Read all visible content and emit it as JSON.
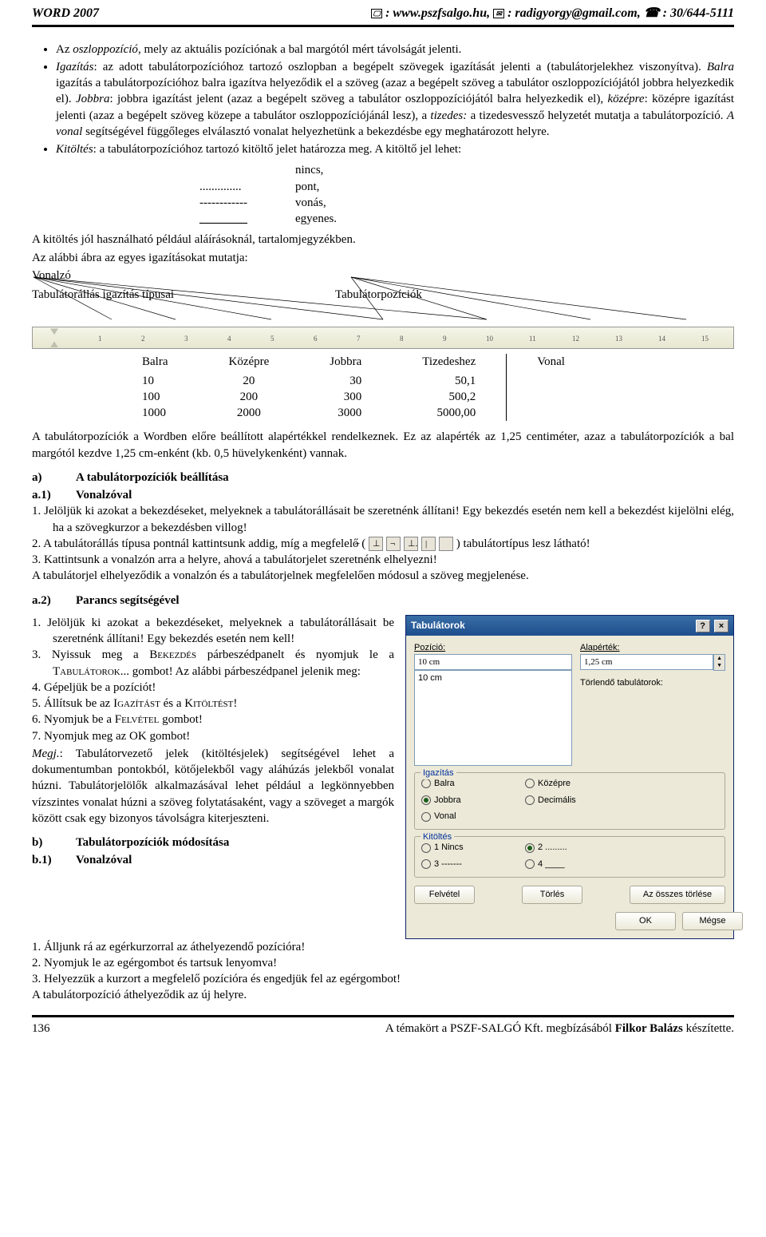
{
  "header": {
    "left": "WORD 2007",
    "right_web": ": www.pszfsalgo.hu, ",
    "right_mail": ": radigyorgy@gmail.com, ",
    "right_phone": ": 30/644-5111"
  },
  "bullets": {
    "b1_pre": "Az ",
    "b1_it": "oszloppozíció",
    "b1_post": ", mely az aktuális pozíciónak a bal margótól mért távolságát jelenti.",
    "b2_it": "Igazítás",
    "b2_txt": ": az adott tabulátorpozícióhoz tartozó oszlopban a begépelt szövegek igazítását jelenti a (tabulátorjelekhez viszonyítva). ",
    "b2_balra_it": "Balra",
    "b2_balra": " igazítás a tabulátorpozícióhoz balra igazítva helyeződik el a szöveg (azaz a begépelt szöveg a tabulátor oszloppozíciójától jobbra helyezkedik el). ",
    "b2_jobbra_it": "Jobbra",
    "b2_jobbra": ": jobbra igazítást jelent (azaz a begépelt szöveg a tabulátor oszloppozíciójától balra helyezkedik el), ",
    "b2_kozepre_it": "középre",
    "b2_kozepre": ": középre igazítást jelenti (azaz a begépelt szöveg közepe a tabulátor oszloppozíciójánál lesz), a ",
    "b2_tizedes_it": "tizedes:",
    "b2_tizedes": " a tizedesvessző helyzetét mutatja a tabulátorpozíció. ",
    "b2_vonal_it": "A vonal",
    "b2_vonal": " segítségével függőleges elválasztó vonalat helyezhetünk a bekezdésbe egy meghatározott helyre.",
    "b3_it": "Kitöltés",
    "b3_txt": ": a tabulátorpozícióhoz tartozó kitöltő jelet határozza meg. A kitöltő jel lehet:"
  },
  "fill": {
    "r1a": "",
    "r1b": "nincs,",
    "r2a": "..............",
    "r2b": "pont,",
    "r3a": "------------",
    "r3b": "vonás,",
    "r4a": "________",
    "r4b": "egyenes."
  },
  "para": {
    "p1": "A kitöltés jól használható például aláírásoknál, tartalomjegyzékben.",
    "p2": "Az alábbi ábra az egyes igazításokat mutatja:",
    "p3": "Vonalzó",
    "labL": "Tabulátorállás igazítás típusai",
    "labR": "Tabulátorpozíciók"
  },
  "tabtable": {
    "h": [
      "Balra",
      "Középre",
      "Jobbra",
      "Tizedeshez",
      "Vonal"
    ],
    "r1": [
      "10",
      "20",
      "30",
      "50,1",
      ""
    ],
    "r2": [
      "100",
      "200",
      "300",
      "500,2",
      ""
    ],
    "r3": [
      "1000",
      "2000",
      "3000",
      "5000,00",
      ""
    ]
  },
  "p_after_table": "A tabulátorpozíciók a Wordben előre beállított alapértékkel rendelkeznek. Ez az alapérték az 1,25 centiméter, azaz a tabulátorpozíciók a bal margótól kezdve 1,25 cm-enként (kb. 0,5 hüvelykenként) vannak.",
  "sec_a": {
    "a_lbl": "a)",
    "a_txt": "A tabulátorpozíciók beállítása",
    "a1_lbl": "a.1)",
    "a1_txt": "Vonalzóval",
    "s1": "1.  Jelöljük ki azokat a bekezdéseket, melyeknek a tabulátorállásait be szeretnénk állítani! Egy bekezdés esetén nem kell a bekezdést kijelölni elég, ha a szövegkurzor a bekezdésben villog!",
    "s2a": "2.  A tabulátorállás típusa pontnál kattintsunk addig, míg a megfelelő ( ",
    "s2b": " ) tabulátortípus lesz látható!",
    "s3": "3.  Kattintsunk a vonalzón arra a helyre, ahová a tabulátorjelet szeretnénk elhelyezni!",
    "s_post": "A tabulátorjel elhelyeződik a vonalzón és a tabulátorjelnek megfelelően módosul a szöveg megjelenése."
  },
  "sec_a2": {
    "lbl": "a.2)",
    "txt": "Parancs segítségével",
    "s1": "1.  Jelöljük ki azokat a bekezdéseket, melyeknek a tabulátorállásait be szeretnénk állítani! Egy bekezdés esetén nem kell!",
    "s3a": "3.  Nyissuk meg a ",
    "s3b": "Bekezdés",
    "s3c": " párbeszédpanelt és nyomjuk le a ",
    "s3d": "Tabulátorok",
    "s3e": "... gombot! Az alábbi párbeszédpanel jelenik meg:",
    "s4": "4.  Gépeljük be a pozíciót!",
    "s5a": "5.  Állítsuk be az ",
    "s5b": "Igazítást",
    "s5c": " és a ",
    "s5d": "Kitöltést",
    "s5e": "!",
    "s6a": "6.  Nyomjuk be a ",
    "s6b": "Felvétel",
    "s6c": " gombot!",
    "s7": "7.  Nyomjuk meg az OK gombot!",
    "mj_it": "Megj.",
    "mj": ": Tabulátorvezető jelek (kitöltésjelek) segítségével lehet a dokumentumban pontokból, kötőjelekből vagy aláhúzás jelekből vonalat húzni. Tabulátorjelölők alkalmazásával lehet például a legkönnyebben vízszintes vonalat húzni a szöveg folytatásaként, vagy a szöveget a margók között csak egy bizonyos távolságra kiterjeszteni."
  },
  "sec_b": {
    "b_lbl": "b)",
    "b_txt": "Tabulátorpozíciók módosítása",
    "b1_lbl": "b.1)",
    "b1_txt": "Vonalzóval",
    "s1": "1.  Álljunk rá az egérkurzorral az áthelyezendő pozícióra!",
    "s2": "2.  Nyomjuk le az egérgombot és tartsuk lenyomva!",
    "s3": "3.  Helyezzük a kurzort a megfelelő pozícióra és engedjük fel az egérgombot!",
    "post": "A tabulátorpozíció áthelyeződik az új helyre."
  },
  "dialog": {
    "title": "Tabulátorok",
    "pos_lbl": "Pozíció:",
    "pos_val": "10 cm",
    "def_lbl": "Alapérték:",
    "def_val": "1,25 cm",
    "list_item": "10 cm",
    "torl_lbl": "Törlendő tabulátorok:",
    "g1_legend": "Igazítás",
    "r_balra": "Balra",
    "r_kozepre": "Középre",
    "r_jobbra": "Jobbra",
    "r_decimalis": "Decimális",
    "r_vonal": "Vonal",
    "g2_legend": "Kitöltés",
    "k1": "1 Nincs",
    "k2": "2 .........",
    "k3": "3 -------",
    "k4": "4 ____",
    "btn_felvetel": "Felvétel",
    "btn_torles": "Törlés",
    "btn_osszes": "Az összes törlése",
    "btn_ok": "OK",
    "btn_megse": "Mégse"
  },
  "footer": {
    "pagenum": "136",
    "right": "A témakört a PSZF-SALGÓ Kft. megbízásából Filkor Balázs készítette."
  },
  "colors": {
    "titlebar_top": "#3a6ea5",
    "titlebar_bot": "#1e4e8e",
    "dialog_bg": "#ece9d8",
    "input_border": "#7f9db9",
    "group_border": "#aca899",
    "legend_color": "#00309c"
  }
}
